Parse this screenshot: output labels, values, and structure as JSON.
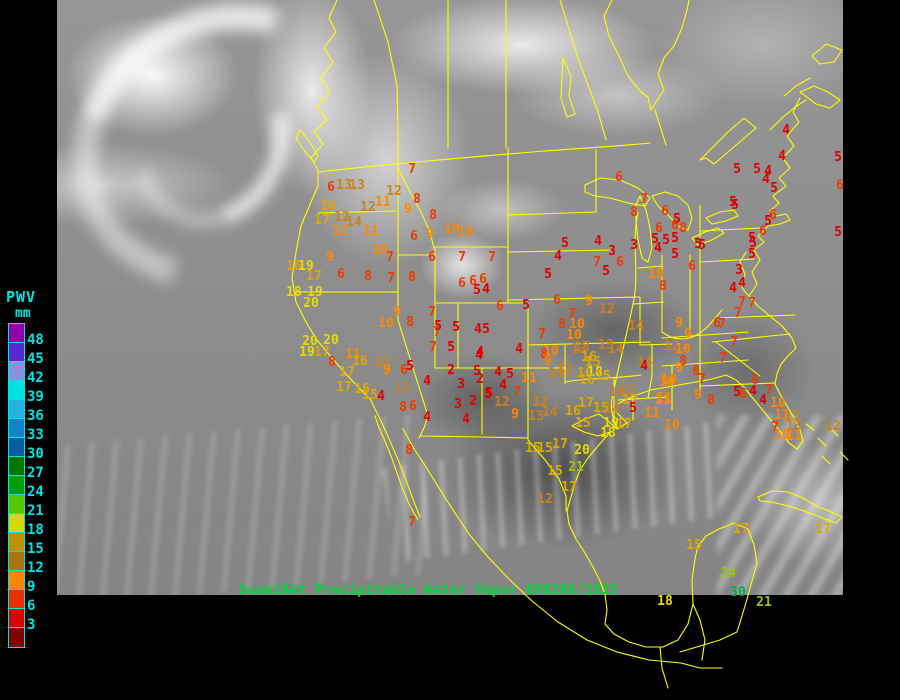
{
  "caption": {
    "text": "SuomiNet Precipitable Water Vapor 090206/1815",
    "color": "#00d83c"
  },
  "legend": {
    "title": "PWV",
    "units": "mm",
    "text_color": "#00e4e4",
    "entries": [
      {
        "label": "48",
        "color": "#9000a8"
      },
      {
        "label": "45",
        "color": "#5828d0"
      },
      {
        "label": "42",
        "color": "#8890e0"
      },
      {
        "label": "39",
        "color": "#00e0e0"
      },
      {
        "label": "36",
        "color": "#28b0e0"
      },
      {
        "label": "33",
        "color": "#1484c8"
      },
      {
        "label": "30",
        "color": "#0c5ca4"
      },
      {
        "label": "27",
        "color": "#007800"
      },
      {
        "label": "24",
        "color": "#009c00"
      },
      {
        "label": "21",
        "color": "#58c800"
      },
      {
        "label": "18",
        "color": "#d8d800"
      },
      {
        "label": "15",
        "color": "#c09000"
      },
      {
        "label": "12",
        "color": "#a87414"
      },
      {
        "label": "9",
        "color": "#ff8400"
      },
      {
        "label": "6",
        "color": "#e83000"
      },
      {
        "label": "3",
        "color": "#d80000"
      }
    ],
    "bottom_block_color": "#800000"
  },
  "map": {
    "outline_color": "#ffff00",
    "background": "#000000"
  },
  "value_color_bands": [
    {
      "min": 30,
      "color": "#00ac48"
    },
    {
      "min": 27,
      "color": "#30b400"
    },
    {
      "min": 21,
      "color": "#9cc800"
    },
    {
      "min": 18,
      "color": "#e8dc00"
    },
    {
      "min": 15,
      "color": "#e0a800"
    },
    {
      "min": 12,
      "color": "#c8831e"
    },
    {
      "min": 9,
      "color": "#ff8800"
    },
    {
      "min": 6,
      "color": "#ee3c00"
    },
    {
      "min": 0,
      "color": "#e00000"
    }
  ],
  "stations": [
    [
      6,
      331,
      188
    ],
    [
      13,
      344,
      186
    ],
    [
      13,
      357,
      186
    ],
    [
      7,
      412,
      170
    ],
    [
      12,
      394,
      192
    ],
    [
      8,
      417,
      200
    ],
    [
      9,
      408,
      210
    ],
    [
      11,
      383,
      203
    ],
    [
      16,
      328,
      207
    ],
    [
      17,
      322,
      221
    ],
    [
      12,
      342,
      218
    ],
    [
      14,
      354,
      223
    ],
    [
      12,
      368,
      208
    ],
    [
      11,
      340,
      232
    ],
    [
      11,
      371,
      232
    ],
    [
      8,
      433,
      216
    ],
    [
      6,
      414,
      237
    ],
    [
      9,
      430,
      235
    ],
    [
      10,
      452,
      230
    ],
    [
      10,
      466,
      233
    ],
    [
      8,
      368,
      277
    ],
    [
      6,
      341,
      275
    ],
    [
      10,
      380,
      251
    ],
    [
      7,
      390,
      258
    ],
    [
      7,
      391,
      279
    ],
    [
      8,
      412,
      278
    ],
    [
      6,
      432,
      258
    ],
    [
      7,
      462,
      258
    ],
    [
      7,
      492,
      258
    ],
    [
      6,
      462,
      284
    ],
    [
      6,
      473,
      282
    ],
    [
      6,
      483,
      280
    ],
    [
      5,
      477,
      291
    ],
    [
      4,
      486,
      290
    ],
    [
      9,
      330,
      258
    ],
    [
      9,
      397,
      313
    ],
    [
      16,
      294,
      267
    ],
    [
      19,
      306,
      267
    ],
    [
      17,
      314,
      277
    ],
    [
      18,
      294,
      293
    ],
    [
      19,
      315,
      293
    ],
    [
      20,
      311,
      304
    ],
    [
      20,
      310,
      342
    ],
    [
      20,
      331,
      341
    ],
    [
      19,
      307,
      353
    ],
    [
      17,
      322,
      353
    ],
    [
      8,
      332,
      363
    ],
    [
      17,
      347,
      373
    ],
    [
      17,
      344,
      388
    ],
    [
      16,
      362,
      390
    ],
    [
      15,
      370,
      396
    ],
    [
      4,
      381,
      397
    ],
    [
      11,
      353,
      355
    ],
    [
      16,
      360,
      362
    ],
    [
      12,
      382,
      363
    ],
    [
      9,
      387,
      371
    ],
    [
      6,
      404,
      371
    ],
    [
      5,
      410,
      367
    ],
    [
      12,
      403,
      389
    ],
    [
      10,
      386,
      324
    ],
    [
      8,
      410,
      323
    ],
    [
      7,
      437,
      333
    ],
    [
      5,
      456,
      328
    ],
    [
      4,
      478,
      330
    ],
    [
      5,
      486,
      330
    ],
    [
      5,
      451,
      348
    ],
    [
      4,
      480,
      353
    ],
    [
      4,
      427,
      382
    ],
    [
      2,
      451,
      371
    ],
    [
      5,
      477,
      372
    ],
    [
      3,
      461,
      385
    ],
    [
      2,
      480,
      380
    ],
    [
      3,
      458,
      405
    ],
    [
      2,
      473,
      402
    ],
    [
      5,
      489,
      394
    ],
    [
      4,
      427,
      418
    ],
    [
      4,
      466,
      420
    ],
    [
      8,
      403,
      408
    ],
    [
      6,
      413,
      407
    ],
    [
      8,
      409,
      451
    ],
    [
      7,
      412,
      523
    ],
    [
      4,
      498,
      373
    ],
    [
      5,
      510,
      375
    ],
    [
      4,
      503,
      386
    ],
    [
      7,
      517,
      393
    ],
    [
      11,
      529,
      379
    ],
    [
      4,
      519,
      350
    ],
    [
      4,
      479,
      356
    ],
    [
      7,
      432,
      313
    ],
    [
      5,
      438,
      327
    ],
    [
      7,
      433,
      348
    ],
    [
      5,
      548,
      275
    ],
    [
      5,
      526,
      306
    ],
    [
      6,
      557,
      301
    ],
    [
      6,
      500,
      307
    ],
    [
      9,
      589,
      302
    ],
    [
      12,
      607,
      310
    ],
    [
      5,
      565,
      244
    ],
    [
      4,
      558,
      257
    ],
    [
      4,
      598,
      242
    ],
    [
      3,
      612,
      252
    ],
    [
      3,
      634,
      246
    ],
    [
      7,
      597,
      263
    ],
    [
      5,
      606,
      272
    ],
    [
      6,
      620,
      263
    ],
    [
      7,
      572,
      315
    ],
    [
      8,
      562,
      325
    ],
    [
      10,
      577,
      325
    ],
    [
      10,
      574,
      336
    ],
    [
      13,
      582,
      348
    ],
    [
      14,
      636,
      327
    ],
    [
      7,
      542,
      335
    ],
    [
      10,
      551,
      352
    ],
    [
      8,
      544,
      355
    ],
    [
      9,
      548,
      362
    ],
    [
      12,
      565,
      370
    ],
    [
      13,
      579,
      350
    ],
    [
      16,
      589,
      358
    ],
    [
      15,
      593,
      363
    ],
    [
      16,
      585,
      374
    ],
    [
      18,
      595,
      373
    ],
    [
      15,
      603,
      377
    ],
    [
      16,
      587,
      381
    ],
    [
      13,
      606,
      346
    ],
    [
      14,
      616,
      350
    ],
    [
      14,
      645,
      363
    ],
    [
      12,
      627,
      392
    ],
    [
      14,
      617,
      393
    ],
    [
      17,
      630,
      401
    ],
    [
      10,
      669,
      381
    ],
    [
      11,
      663,
      401
    ],
    [
      12,
      672,
      347
    ],
    [
      14,
      556,
      374
    ],
    [
      12,
      540,
      403
    ],
    [
      13,
      536,
      417
    ],
    [
      14,
      550,
      413
    ],
    [
      16,
      573,
      412
    ],
    [
      17,
      586,
      404
    ],
    [
      15,
      583,
      424
    ],
    [
      19,
      611,
      424
    ],
    [
      17,
      624,
      425
    ],
    [
      15,
      601,
      409
    ],
    [
      14,
      612,
      410
    ],
    [
      5,
      633,
      409
    ],
    [
      5,
      488,
      395
    ],
    [
      9,
      515,
      415
    ],
    [
      12,
      502,
      403
    ],
    [
      17,
      560,
      445
    ],
    [
      15,
      533,
      449
    ],
    [
      15,
      545,
      449
    ],
    [
      20,
      582,
      451
    ],
    [
      18,
      608,
      434
    ],
    [
      15,
      555,
      472
    ],
    [
      21,
      576,
      468
    ],
    [
      17,
      569,
      488
    ],
    [
      12,
      545,
      500
    ],
    [
      6,
      619,
      178
    ],
    [
      8,
      634,
      213
    ],
    [
      7,
      644,
      200
    ],
    [
      6,
      665,
      212
    ],
    [
      6,
      659,
      229
    ],
    [
      5,
      677,
      220
    ],
    [
      6,
      675,
      226
    ],
    [
      8,
      683,
      229
    ],
    [
      5,
      655,
      240
    ],
    [
      4,
      658,
      249
    ],
    [
      5,
      666,
      241
    ],
    [
      5,
      675,
      239
    ],
    [
      5,
      698,
      245
    ],
    [
      5,
      702,
      246
    ],
    [
      5,
      675,
      255
    ],
    [
      6,
      692,
      267
    ],
    [
      10,
      656,
      275
    ],
    [
      8,
      663,
      287
    ],
    [
      9,
      679,
      324
    ],
    [
      5,
      733,
      203
    ],
    [
      5,
      752,
      239
    ],
    [
      5,
      752,
      255
    ],
    [
      4,
      786,
      131
    ],
    [
      4,
      782,
      157
    ],
    [
      5,
      737,
      170
    ],
    [
      5,
      757,
      170
    ],
    [
      4,
      768,
      172
    ],
    [
      4,
      766,
      180
    ],
    [
      5,
      774,
      189
    ],
    [
      5,
      735,
      206
    ],
    [
      6,
      773,
      216
    ],
    [
      5,
      768,
      222
    ],
    [
      6,
      763,
      232
    ],
    [
      5,
      753,
      244
    ],
    [
      3,
      739,
      271
    ],
    [
      4,
      742,
      284
    ],
    [
      4,
      733,
      289
    ],
    [
      7,
      742,
      303
    ],
    [
      7,
      752,
      304
    ],
    [
      7,
      738,
      314
    ],
    [
      6,
      717,
      324
    ],
    [
      7,
      722,
      325
    ],
    [
      9,
      688,
      335
    ],
    [
      10,
      683,
      350
    ],
    [
      8,
      683,
      362
    ],
    [
      9,
      679,
      369
    ],
    [
      8,
      696,
      372
    ],
    [
      7,
      702,
      380
    ],
    [
      7,
      723,
      359
    ],
    [
      7,
      734,
      343
    ],
    [
      4,
      644,
      367
    ],
    [
      10,
      667,
      383
    ],
    [
      11,
      664,
      399
    ],
    [
      9,
      698,
      396
    ],
    [
      8,
      711,
      401
    ],
    [
      11,
      652,
      414
    ],
    [
      10,
      672,
      426
    ],
    [
      6,
      755,
      381
    ],
    [
      7,
      769,
      391
    ],
    [
      5,
      737,
      393
    ],
    [
      6,
      743,
      395
    ],
    [
      4,
      753,
      392
    ],
    [
      4,
      763,
      401
    ],
    [
      7,
      775,
      428
    ],
    [
      10,
      778,
      404
    ],
    [
      11,
      782,
      416
    ],
    [
      13,
      792,
      417
    ],
    [
      13,
      794,
      427
    ],
    [
      10,
      782,
      436
    ],
    [
      11,
      794,
      437
    ],
    [
      12,
      833,
      427
    ],
    [
      15,
      694,
      546
    ],
    [
      17,
      741,
      530
    ],
    [
      17,
      823,
      530
    ],
    [
      24,
      728,
      574
    ],
    [
      30,
      738,
      593
    ],
    [
      21,
      764,
      603
    ],
    [
      18,
      665,
      602
    ],
    [
      5,
      838,
      158
    ],
    [
      6,
      840,
      186
    ],
    [
      5,
      838,
      233
    ]
  ]
}
